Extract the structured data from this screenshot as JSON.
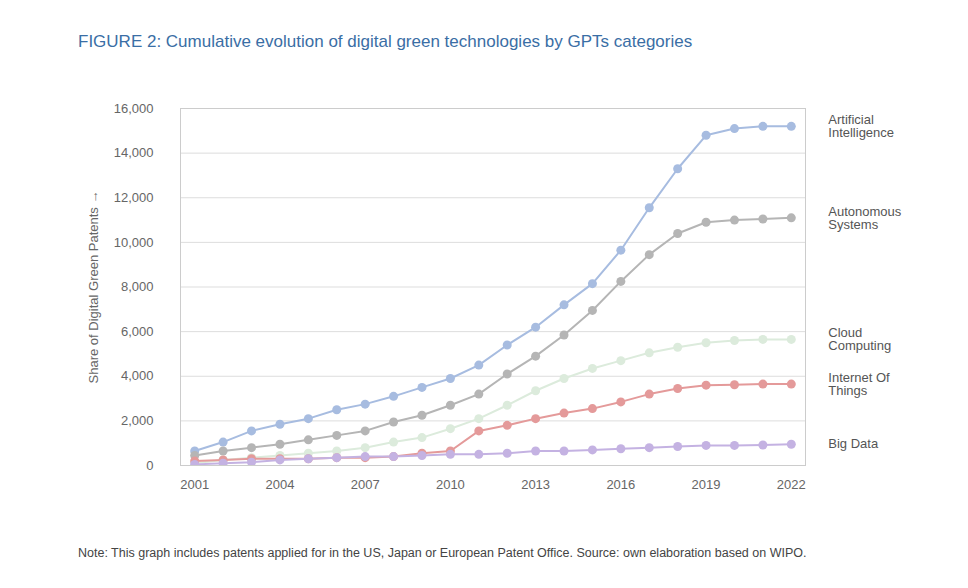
{
  "chart_data": {
    "type": "line",
    "title": "FIGURE 2: Cumulative evolution of digital green technologies by GPTs categories",
    "y_label": "Share of Digital Green Patents",
    "note": "Note: This graph includes patents applied for in the US, Japan or European Patent Office. Source: own elaboration based on WIPO.",
    "x": [
      2001,
      2002,
      2003,
      2004,
      2005,
      2006,
      2007,
      2008,
      2009,
      2010,
      2011,
      2012,
      2013,
      2014,
      2015,
      2016,
      2017,
      2018,
      2019,
      2020,
      2021,
      2022
    ],
    "series": [
      {
        "name": "Artificial Intelligence",
        "color": "#a7bce0",
        "values": [
          650,
          1050,
          1550,
          1850,
          2100,
          2500,
          2750,
          3100,
          3500,
          3900,
          4500,
          5400,
          6200,
          7200,
          8150,
          9650,
          11550,
          13300,
          14800,
          15100,
          15200,
          15200
        ]
      },
      {
        "name": "Autonomous Systems",
        "color": "#b5b5b5",
        "values": [
          450,
          650,
          800,
          950,
          1150,
          1350,
          1550,
          1950,
          2250,
          2700,
          3200,
          4100,
          4900,
          5850,
          6950,
          8250,
          9450,
          10400,
          10900,
          11000,
          11050,
          11100
        ]
      },
      {
        "name": "Cloud Computing",
        "color": "#dcebdc",
        "values": [
          100,
          250,
          350,
          450,
          550,
          650,
          800,
          1050,
          1250,
          1650,
          2100,
          2700,
          3350,
          3900,
          4350,
          4700,
          5050,
          5300,
          5500,
          5600,
          5650,
          5650
        ]
      },
      {
        "name": "Internet Of Things",
        "color": "#e49a9a",
        "values": [
          200,
          250,
          300,
          300,
          300,
          350,
          350,
          400,
          550,
          650,
          1550,
          1800,
          2100,
          2350,
          2550,
          2850,
          3200,
          3450,
          3600,
          3620,
          3650,
          3650
        ]
      },
      {
        "name": "Big Data",
        "color": "#c4b2e2",
        "values": [
          50,
          100,
          150,
          250,
          300,
          350,
          400,
          400,
          450,
          500,
          500,
          550,
          650,
          650,
          700,
          750,
          800,
          850,
          900,
          900,
          920,
          950
        ]
      }
    ],
    "xlim": [
      2000.5,
      2022.5
    ],
    "ylim": [
      0,
      16000
    ],
    "xticks": [
      2001,
      2004,
      2007,
      2010,
      2013,
      2016,
      2019,
      2022
    ],
    "yticks": [
      0,
      {
        "value": 2000,
        "label": "2,000"
      },
      {
        "value": 4000,
        "label": "4,000"
      },
      {
        "value": 6000,
        "label": "6,000"
      },
      {
        "value": 8000,
        "label": "8,000"
      },
      {
        "value": 10000,
        "label": "10,000"
      },
      {
        "value": 12000,
        "label": "12,000"
      },
      {
        "value": 14000,
        "label": "14,000"
      },
      {
        "value": 16000,
        "label": "16,000"
      }
    ],
    "grid": true,
    "marker": "circle"
  }
}
